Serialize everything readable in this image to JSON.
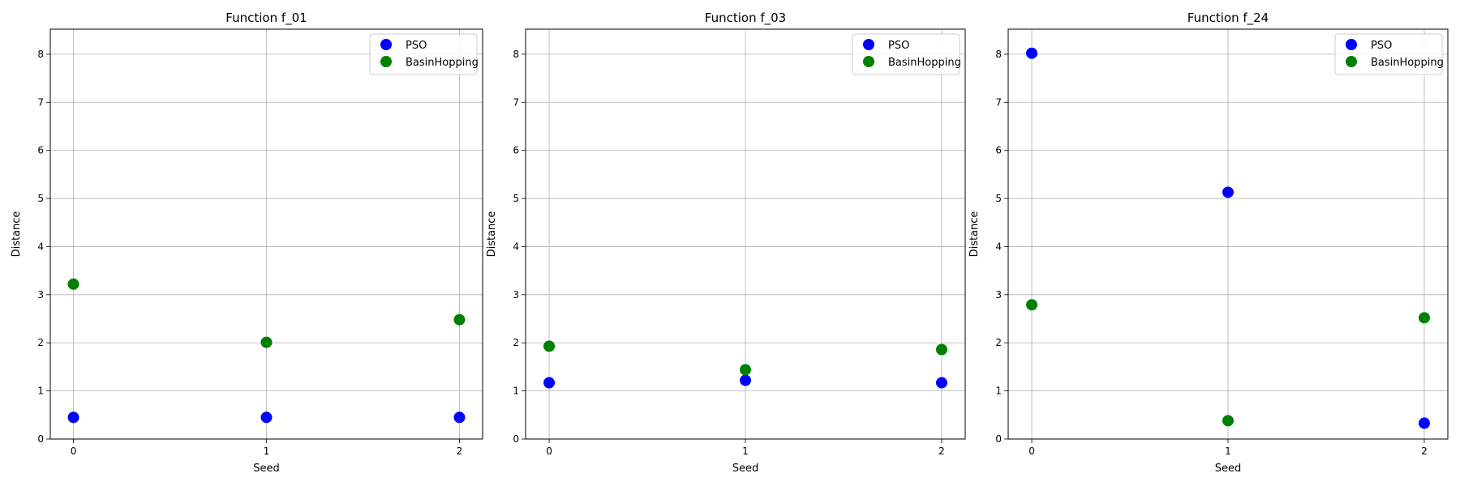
{
  "chart_data": [
    {
      "type": "scatter",
      "title": "Function f_01",
      "xlabel": "Seed",
      "ylabel": "Distance",
      "xticks": [
        0,
        1,
        2
      ],
      "yticks": [
        0,
        1,
        2,
        3,
        4,
        5,
        6,
        7,
        8
      ],
      "xlim": [
        -0.12,
        2.12
      ],
      "ylim": [
        0,
        8.52
      ],
      "grid": true,
      "legend_position": "top-right",
      "series": [
        {
          "name": "PSO",
          "color": "#0000ff",
          "x": [
            0,
            1,
            2
          ],
          "y": [
            0.45,
            0.45,
            0.45
          ]
        },
        {
          "name": "BasinHopping",
          "color": "#008000",
          "x": [
            0,
            1,
            2
          ],
          "y": [
            3.22,
            2.01,
            2.48
          ]
        }
      ]
    },
    {
      "type": "scatter",
      "title": "Function f_03",
      "xlabel": "Seed",
      "ylabel": "Distance",
      "xticks": [
        0,
        1,
        2
      ],
      "yticks": [
        0,
        1,
        2,
        3,
        4,
        5,
        6,
        7,
        8
      ],
      "xlim": [
        -0.12,
        2.12
      ],
      "ylim": [
        0,
        8.52
      ],
      "grid": true,
      "legend_position": "top-right",
      "series": [
        {
          "name": "PSO",
          "color": "#0000ff",
          "x": [
            0,
            1,
            2
          ],
          "y": [
            1.17,
            1.22,
            1.17
          ]
        },
        {
          "name": "BasinHopping",
          "color": "#008000",
          "x": [
            0,
            1,
            2
          ],
          "y": [
            1.93,
            1.44,
            1.86
          ]
        }
      ]
    },
    {
      "type": "scatter",
      "title": "Function f_24",
      "xlabel": "Seed",
      "ylabel": "Distance",
      "xticks": [
        0,
        1,
        2
      ],
      "yticks": [
        0,
        1,
        2,
        3,
        4,
        5,
        6,
        7,
        8
      ],
      "xlim": [
        -0.12,
        2.12
      ],
      "ylim": [
        0,
        8.52
      ],
      "grid": true,
      "legend_position": "top-right",
      "series": [
        {
          "name": "PSO",
          "color": "#0000ff",
          "x": [
            0,
            1,
            2
          ],
          "y": [
            8.02,
            5.13,
            0.33
          ]
        },
        {
          "name": "BasinHopping",
          "color": "#008000",
          "x": [
            0,
            1,
            2
          ],
          "y": [
            2.79,
            0.38,
            2.52
          ]
        }
      ]
    }
  ]
}
